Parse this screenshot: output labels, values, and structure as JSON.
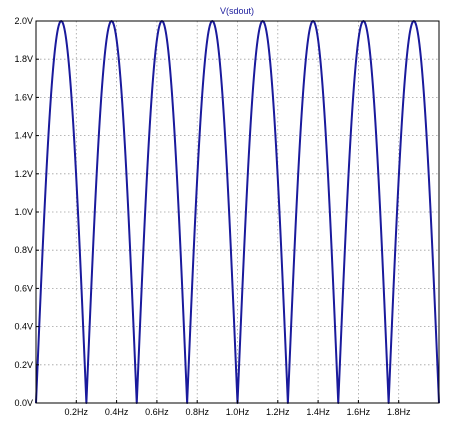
{
  "chart_data": {
    "type": "line",
    "title": "V(sdout)",
    "xlabel": "",
    "ylabel": "",
    "xlim": [
      0,
      2.0
    ],
    "ylim": [
      0,
      2.0
    ],
    "grid": true,
    "x_ticks": [
      0.2,
      0.4,
      0.6,
      0.8,
      1.0,
      1.2,
      1.4,
      1.6,
      1.8
    ],
    "x_tick_labels": [
      "0.2Hz",
      "0.4Hz",
      "0.6Hz",
      "0.8Hz",
      "1.0Hz",
      "1.2Hz",
      "1.4Hz",
      "1.6Hz",
      "1.8Hz"
    ],
    "y_ticks": [
      0,
      0.2,
      0.4,
      0.6,
      0.8,
      1.0,
      1.2,
      1.4,
      1.6,
      1.8,
      2.0
    ],
    "y_tick_labels": [
      "0.0V",
      "0.2V",
      "0.4V",
      "0.6V",
      "0.8V",
      "1.0V",
      "1.2V",
      "1.4V",
      "1.6V",
      "1.8V",
      "2.0V"
    ],
    "series": [
      {
        "name": "V(sdout)",
        "shape": "full-wave rectified sine, |2.0*sin(2*pi*2*x)|",
        "amplitude": 2.0,
        "peaks_x": [
          0.125,
          0.375,
          0.625,
          0.875,
          1.125,
          1.375,
          1.625,
          1.875
        ],
        "peaks_y": [
          2.0,
          2.0,
          2.0,
          2.0,
          2.0,
          2.0,
          2.0,
          2.0
        ],
        "zeros_x": [
          0.0,
          0.25,
          0.5,
          0.75,
          1.0,
          1.25,
          1.5,
          1.75,
          2.0
        ]
      }
    ],
    "colors": {
      "trace": "#1a1a9c",
      "title": "#1a1a9c",
      "grid": "#a0a0a0",
      "frame": "#000000"
    }
  }
}
